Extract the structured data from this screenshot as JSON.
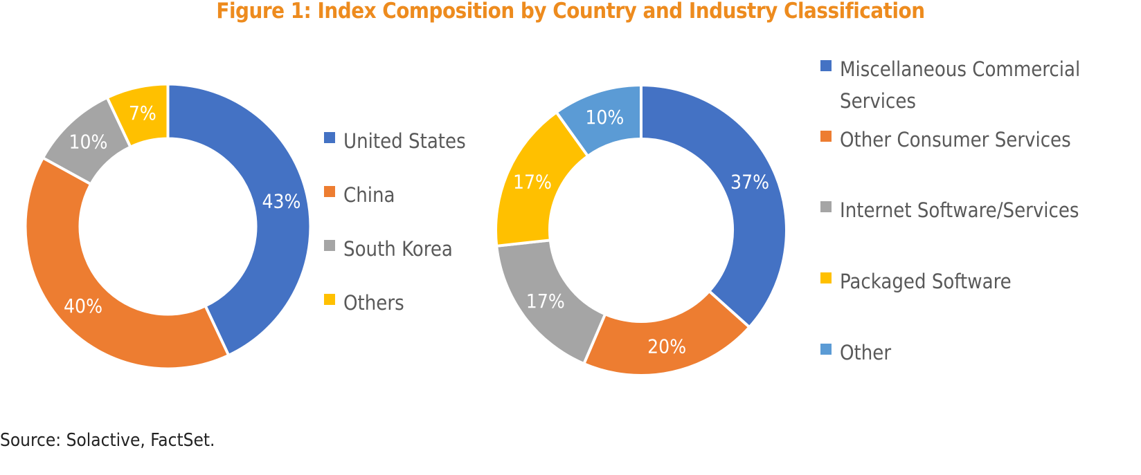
{
  "title": "Figure 1: Index Composition by Country and Industry Classification",
  "source": "Source: Solactive, FactSet.",
  "chart_data": [
    {
      "type": "pie",
      "donut": true,
      "categories": [
        "United States",
        "China",
        "South Korea",
        "Others"
      ],
      "values": [
        43,
        40,
        10,
        7
      ],
      "value_labels": [
        "43%",
        "40%",
        "10%",
        "7%"
      ],
      "colors": [
        "#4472C4",
        "#ED7D31",
        "#A5A5A5",
        "#FFC000"
      ],
      "legend_position": "right"
    },
    {
      "type": "pie",
      "donut": true,
      "categories": [
        "Miscellaneous Commercial Services",
        "Other Consumer Services",
        "Internet Software/Services",
        "Packaged Software",
        "Other"
      ],
      "legend_lines": [
        [
          "Miscellaneous Commercial",
          "Services"
        ],
        [
          "Other Consumer Services"
        ],
        [
          "Internet Software/Services"
        ],
        [
          "Packaged Software"
        ],
        [
          "Other"
        ]
      ],
      "values": [
        37,
        20,
        17,
        17,
        10
      ],
      "value_labels": [
        "37%",
        "20%",
        "17%",
        "17%",
        "10%"
      ],
      "colors": [
        "#4472C4",
        "#ED7D31",
        "#A5A5A5",
        "#FFC000",
        "#5B9BD5"
      ],
      "legend_position": "right"
    }
  ]
}
